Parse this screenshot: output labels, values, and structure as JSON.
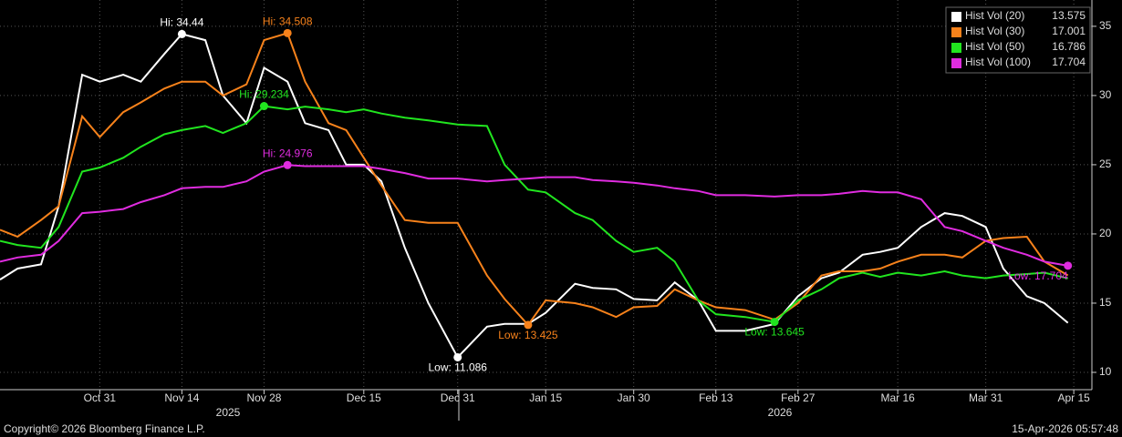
{
  "chart_data": {
    "type": "line",
    "x": [
      "2025-10-14",
      "2025-10-17",
      "2025-10-21",
      "2025-10-24",
      "2025-10-28",
      "2025-10-31",
      "2025-11-04",
      "2025-11-07",
      "2025-11-11",
      "2025-11-14",
      "2025-11-18",
      "2025-11-21",
      "2025-11-25",
      "2025-11-28",
      "2025-12-02",
      "2025-12-05",
      "2025-12-09",
      "2025-12-12",
      "2025-12-15",
      "2025-12-18",
      "2025-12-22",
      "2025-12-26",
      "2025-12-31",
      "2026-01-05",
      "2026-01-08",
      "2026-01-12",
      "2026-01-15",
      "2026-01-20",
      "2026-01-23",
      "2026-01-27",
      "2026-01-30",
      "2026-02-03",
      "2026-02-06",
      "2026-02-10",
      "2026-02-13",
      "2026-02-18",
      "2026-02-23",
      "2026-02-27",
      "2026-03-03",
      "2026-03-06",
      "2026-03-10",
      "2026-03-13",
      "2026-03-16",
      "2026-03-20",
      "2026-03-24",
      "2026-03-27",
      "2026-03-31",
      "2026-04-03",
      "2026-04-07",
      "2026-04-10",
      "2026-04-14"
    ],
    "series": [
      {
        "name": "Hist Vol (20)",
        "color": "#ffffff",
        "values": [
          16.7,
          17.5,
          17.8,
          22,
          31.5,
          31,
          31.5,
          31,
          33,
          34.44,
          34,
          30,
          28,
          32,
          31,
          28,
          27.5,
          25,
          25,
          23.8,
          19,
          15,
          11.086,
          13.3,
          13.5,
          13.5,
          14.3,
          16.4,
          16.1,
          16,
          15.3,
          15.2,
          16.5,
          15.2,
          13,
          13,
          13.5,
          15.5,
          16.8,
          17.2,
          18.5,
          18.7,
          19,
          20.5,
          21.5,
          21.3,
          20.5,
          17.5,
          15.5,
          15,
          13.575
        ],
        "annotations": [
          {
            "text": "Hi: 34.44",
            "x": "2025-11-14"
          },
          {
            "text": "Low: 11.086",
            "x": "2025-12-31"
          }
        ]
      },
      {
        "name": "Hist Vol (30)",
        "color": "#f7821b",
        "values": [
          20.3,
          19.8,
          21,
          22,
          28.5,
          27,
          28.8,
          29.5,
          30.5,
          31,
          31,
          30,
          30.8,
          34,
          34.508,
          31,
          28,
          27.5,
          25.5,
          23.5,
          21,
          20.8,
          20.8,
          17,
          15.3,
          13.425,
          15.2,
          15,
          14.7,
          14,
          14.7,
          14.8,
          16,
          15.2,
          14.7,
          14.5,
          13.8,
          15,
          17,
          17.3,
          17.3,
          17.5,
          18,
          18.5,
          18.5,
          18.3,
          19.5,
          19.7,
          19.8,
          18,
          17.001
        ],
        "annotations": [
          {
            "text": "Hi: 34.508",
            "x": "2025-12-02"
          },
          {
            "text": "Low: 13.425",
            "x": "2026-01-12"
          }
        ]
      },
      {
        "name": "Hist Vol (50)",
        "color": "#21e51f",
        "values": [
          19.5,
          19.2,
          19,
          20.5,
          24.5,
          24.8,
          25.5,
          26.3,
          27.2,
          27.5,
          27.8,
          27.3,
          28,
          29.234,
          29,
          29.2,
          29,
          28.8,
          29,
          28.7,
          28.4,
          28.2,
          27.9,
          27.8,
          25,
          23.2,
          23,
          21.5,
          21,
          19.5,
          18.7,
          19,
          18,
          15.2,
          14.2,
          14,
          13.645,
          15.2,
          16,
          16.8,
          17.2,
          16.9,
          17.2,
          17,
          17.3,
          17,
          16.8,
          17,
          17.1,
          17.2,
          16.786
        ],
        "annotations": [
          {
            "text": "Hi: 29.234",
            "x": "2025-11-28"
          },
          {
            "text": "Low: 13.645",
            "x": "2026-02-23"
          }
        ]
      },
      {
        "name": "Hist Vol (100)",
        "color": "#e02ce0",
        "values": [
          18,
          18.3,
          18.5,
          19.5,
          21.5,
          21.6,
          21.8,
          22.3,
          22.8,
          23.3,
          23.4,
          23.4,
          23.8,
          24.5,
          24.976,
          24.9,
          24.9,
          24.9,
          24.9,
          24.7,
          24.4,
          24,
          24,
          23.8,
          23.9,
          24,
          24.1,
          24.1,
          23.9,
          23.8,
          23.7,
          23.5,
          23.3,
          23.1,
          22.8,
          22.8,
          22.7,
          22.8,
          22.8,
          22.9,
          23.1,
          23,
          23,
          22.5,
          20.5,
          20.2,
          19.5,
          19,
          18.5,
          18,
          17.704
        ],
        "annotations": [
          {
            "text": "Hi: 24.976",
            "x": "2025-12-02"
          },
          {
            "text": "Low: 17.704",
            "x": "2026-04-14"
          }
        ]
      }
    ],
    "xlim": [
      "2025-10-14",
      "2026-04-17"
    ],
    "xticks": [
      {
        "value": "2025-10-31",
        "label": "Oct 31"
      },
      {
        "value": "2025-11-14",
        "label": "Nov 14"
      },
      {
        "value": "2025-11-28",
        "label": "Nov 28"
      },
      {
        "value": "2025-12-15",
        "label": "Dec 15"
      },
      {
        "value": "2025-12-31",
        "label": "Dec 31"
      },
      {
        "value": "2026-01-15",
        "label": "Jan 15"
      },
      {
        "value": "2026-01-30",
        "label": "Jan 30"
      },
      {
        "value": "2026-02-13",
        "label": "Feb 13"
      },
      {
        "value": "2026-02-27",
        "label": "Feb 27"
      },
      {
        "value": "2026-03-16",
        "label": "Mar 16"
      },
      {
        "value": "2026-03-31",
        "label": "Mar 31"
      },
      {
        "value": "2026-04-15",
        "label": "Apr 15"
      }
    ],
    "x_group_labels": [
      "2025",
      "2026"
    ],
    "ylim": [
      8.75,
      36.9
    ],
    "yticks": [
      10,
      15,
      20,
      25,
      30,
      35
    ],
    "grid": true,
    "legend": "top-right",
    "copyright": "Copyright© 2026 Bloomberg Finance L.P.",
    "timestamp": "15-Apr-2026 05:57:48"
  }
}
